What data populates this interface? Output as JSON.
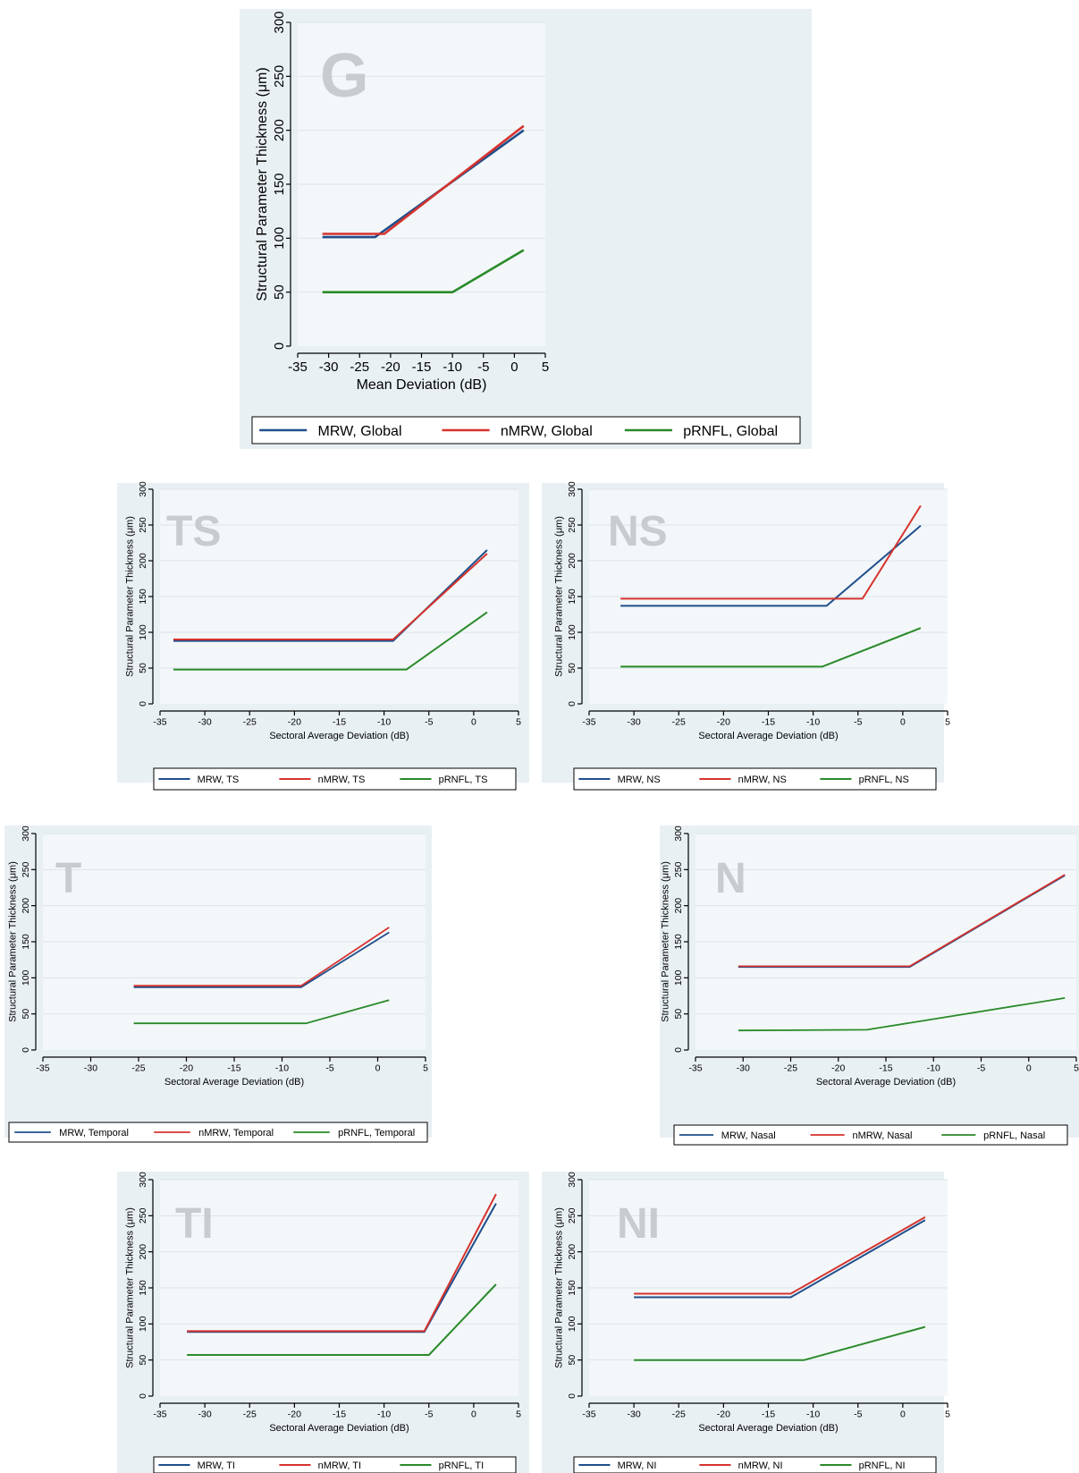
{
  "colors": {
    "MRW": "#1f4e8c",
    "nMRW": "#d6332e",
    "pRNFL": "#2a8a2a"
  },
  "chart_data": [
    {
      "type": "line",
      "title": "G",
      "xlabel": "Mean Deviation (dB)",
      "ylabel": "Structural Parameter Thickness (μm)",
      "xlim": [
        -35,
        5
      ],
      "ylim": [
        0,
        300
      ],
      "xticks": [
        -35,
        -30,
        -25,
        -20,
        -15,
        -10,
        -5,
        0,
        5
      ],
      "yticks": [
        0,
        50,
        100,
        150,
        200,
        250,
        300
      ],
      "grid": true,
      "legend_position": "bottom",
      "series": [
        {
          "name": "MRW, Global",
          "key": "MRW",
          "x": [
            -31,
            -22.5,
            1.5
          ],
          "y": [
            101,
            101,
            200
          ]
        },
        {
          "name": "nMRW, Global",
          "key": "nMRW",
          "x": [
            -31,
            -21,
            1.5
          ],
          "y": [
            104,
            104,
            204
          ]
        },
        {
          "name": "pRNFL, Global",
          "key": "pRNFL",
          "x": [
            -31,
            -10,
            1.5
          ],
          "y": [
            50,
            50,
            89
          ]
        }
      ]
    },
    {
      "type": "line",
      "title": "TS",
      "xlabel": "Sectoral Average Deviation (dB)",
      "ylabel": "Structural Parameter Thickness (μm)",
      "xlim": [
        -35,
        5
      ],
      "ylim": [
        0,
        300
      ],
      "xticks": [
        -35,
        -30,
        -25,
        -20,
        -15,
        -10,
        -5,
        0,
        5
      ],
      "yticks": [
        0,
        50,
        100,
        150,
        200,
        250,
        300
      ],
      "grid": true,
      "legend_position": "bottom",
      "series": [
        {
          "name": "MRW, TS",
          "key": "MRW",
          "x": [
            -33.5,
            -9,
            1.5
          ],
          "y": [
            88,
            88,
            215
          ]
        },
        {
          "name": "nMRW, TS",
          "key": "nMRW",
          "x": [
            -33.5,
            -9,
            1.5
          ],
          "y": [
            90,
            90,
            210
          ]
        },
        {
          "name": "pRNFL, TS",
          "key": "pRNFL",
          "x": [
            -33.5,
            -7.5,
            1.5
          ],
          "y": [
            48,
            48,
            128
          ]
        }
      ]
    },
    {
      "type": "line",
      "title": "NS",
      "xlabel": "Sectoral Average Deviation (dB)",
      "ylabel": "Structural Parameter Thickness (μm)",
      "xlim": [
        -35,
        5
      ],
      "ylim": [
        0,
        300
      ],
      "xticks": [
        -35,
        -30,
        -25,
        -20,
        -15,
        -10,
        -5,
        0,
        5
      ],
      "yticks": [
        0,
        50,
        100,
        150,
        200,
        250,
        300
      ],
      "grid": true,
      "legend_position": "bottom",
      "series": [
        {
          "name": "MRW, NS",
          "key": "MRW",
          "x": [
            -31.5,
            -8.5,
            2
          ],
          "y": [
            137,
            137,
            249
          ]
        },
        {
          "name": "nMRW, NS",
          "key": "nMRW",
          "x": [
            -31.5,
            -4.5,
            2
          ],
          "y": [
            147,
            147,
            277
          ]
        },
        {
          "name": "pRNFL, NS",
          "key": "pRNFL",
          "x": [
            -31.5,
            -9,
            2
          ],
          "y": [
            52,
            52,
            106
          ]
        }
      ]
    },
    {
      "type": "line",
      "title": "T",
      "xlabel": "Sectoral Average Deviation (dB)",
      "ylabel": "Structural Parameter Thickness (μm)",
      "xlim": [
        -35,
        5
      ],
      "ylim": [
        0,
        300
      ],
      "xticks": [
        -35,
        -30,
        -25,
        -20,
        -15,
        -10,
        -5,
        0,
        5
      ],
      "yticks": [
        0,
        50,
        100,
        150,
        200,
        250,
        300
      ],
      "grid": true,
      "legend_position": "bottom",
      "series": [
        {
          "name": "MRW, Temporal",
          "key": "MRW",
          "x": [
            -25.5,
            -8,
            1.2
          ],
          "y": [
            87,
            87,
            163
          ]
        },
        {
          "name": "nMRW, Temporal",
          "key": "nMRW",
          "x": [
            -25.5,
            -8,
            1.2
          ],
          "y": [
            89,
            89,
            170
          ]
        },
        {
          "name": "pRNFL, Temporal",
          "key": "pRNFL",
          "x": [
            -25.5,
            -7.5,
            1.2
          ],
          "y": [
            37,
            37,
            69
          ]
        }
      ]
    },
    {
      "type": "line",
      "title": "N",
      "xlabel": "Sectoral Average Deviation (dB)",
      "ylabel": "Structural Parameter Thickness (μm)",
      "xlim": [
        -35,
        5
      ],
      "ylim": [
        0,
        300
      ],
      "xticks": [
        -35,
        -30,
        -25,
        -20,
        -15,
        -10,
        -5,
        0,
        5
      ],
      "yticks": [
        0,
        50,
        100,
        150,
        200,
        250,
        300
      ],
      "grid": true,
      "legend_position": "bottom",
      "series": [
        {
          "name": "MRW, Nasal",
          "key": "MRW",
          "x": [
            -30.5,
            -12.5,
            3.8
          ],
          "y": [
            115,
            115,
            242
          ]
        },
        {
          "name": "nMRW, Nasal",
          "key": "nMRW",
          "x": [
            -30.5,
            -12.5,
            3.8
          ],
          "y": [
            116,
            116,
            243
          ]
        },
        {
          "name": "pRNFL, Nasal",
          "key": "pRNFL",
          "x": [
            -30.5,
            -17,
            3.8
          ],
          "y": [
            27,
            28,
            72
          ]
        }
      ]
    },
    {
      "type": "line",
      "title": "TI",
      "xlabel": "Sectoral Average Deviation (dB)",
      "ylabel": "Structural Parameter Thickness (μm)",
      "xlim": [
        -35,
        5
      ],
      "ylim": [
        0,
        300
      ],
      "xticks": [
        -35,
        -30,
        -25,
        -20,
        -15,
        -10,
        -5,
        0,
        5
      ],
      "yticks": [
        0,
        50,
        100,
        150,
        200,
        250,
        300
      ],
      "grid": true,
      "legend_position": "bottom",
      "series": [
        {
          "name": "MRW, TI",
          "key": "MRW",
          "x": [
            -32,
            -5.5,
            2.5
          ],
          "y": [
            89,
            89,
            267
          ]
        },
        {
          "name": "nMRW, TI",
          "key": "nMRW",
          "x": [
            -32,
            -5.5,
            2.5
          ],
          "y": [
            90,
            90,
            280
          ]
        },
        {
          "name": "pRNFL, TI",
          "key": "pRNFL",
          "x": [
            -32,
            -5,
            2.5
          ],
          "y": [
            57,
            57,
            155
          ]
        }
      ]
    },
    {
      "type": "line",
      "title": "NI",
      "xlabel": "Sectoral Average Deviation (dB)",
      "ylabel": "Structural Parameter Thickness (μm)",
      "xlim": [
        -35,
        5
      ],
      "ylim": [
        0,
        300
      ],
      "xticks": [
        -35,
        -30,
        -25,
        -20,
        -15,
        -10,
        -5,
        0,
        5
      ],
      "yticks": [
        0,
        50,
        100,
        150,
        200,
        250,
        300
      ],
      "grid": true,
      "legend_position": "bottom",
      "series": [
        {
          "name": "MRW, NI",
          "key": "MRW",
          "x": [
            -30,
            -12.5,
            2.5
          ],
          "y": [
            137,
            137,
            244
          ]
        },
        {
          "name": "nMRW, NI",
          "key": "nMRW",
          "x": [
            -30,
            -12.5,
            2.5
          ],
          "y": [
            142,
            142,
            248
          ]
        },
        {
          "name": "pRNFL, NI",
          "key": "pRNFL",
          "x": [
            -30,
            -11,
            2.5
          ],
          "y": [
            50,
            50,
            96
          ]
        }
      ]
    }
  ]
}
